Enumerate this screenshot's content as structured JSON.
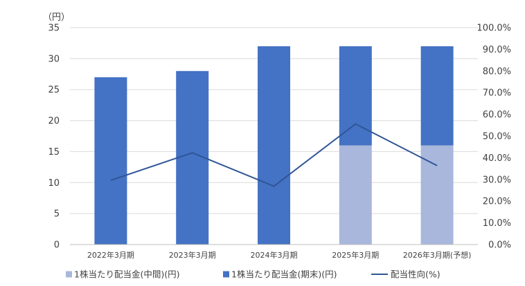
{
  "chart_data": {
    "type": "bar",
    "stacked": true,
    "left_axis_unit": "（円）",
    "categories": [
      "2022年3月期",
      "2023年3月期",
      "2024年3月期",
      "2025年3月期",
      "2026年3月期(予想)"
    ],
    "series": [
      {
        "name": "1株当たり配当金(中間)(円)",
        "type": "bar",
        "axis": "left",
        "color": "#a9b7dc",
        "values": [
          0,
          0,
          0,
          16,
          16
        ]
      },
      {
        "name": "1株当たり配当金(期末)(円)",
        "type": "bar",
        "axis": "left",
        "color": "#4472c4",
        "values": [
          27,
          28,
          32,
          16,
          16
        ]
      },
      {
        "name": "配当性向(%)",
        "type": "line",
        "axis": "right",
        "color": "#2f5597",
        "values": [
          29.6,
          42.3,
          26.9,
          55.6,
          36.4
        ]
      }
    ],
    "ylim": [
      0,
      35
    ],
    "yticks": [
      "0",
      "5",
      "10",
      "15",
      "20",
      "25",
      "30",
      "35"
    ],
    "y2lim": [
      0,
      100
    ],
    "y2ticks": [
      "0.0%",
      "10.0%",
      "20.0%",
      "30.0%",
      "40.0%",
      "50.0%",
      "60.0%",
      "70.0%",
      "80.0%",
      "90.0%",
      "100.0%"
    ],
    "grid": true,
    "legend_position": "bottom"
  }
}
